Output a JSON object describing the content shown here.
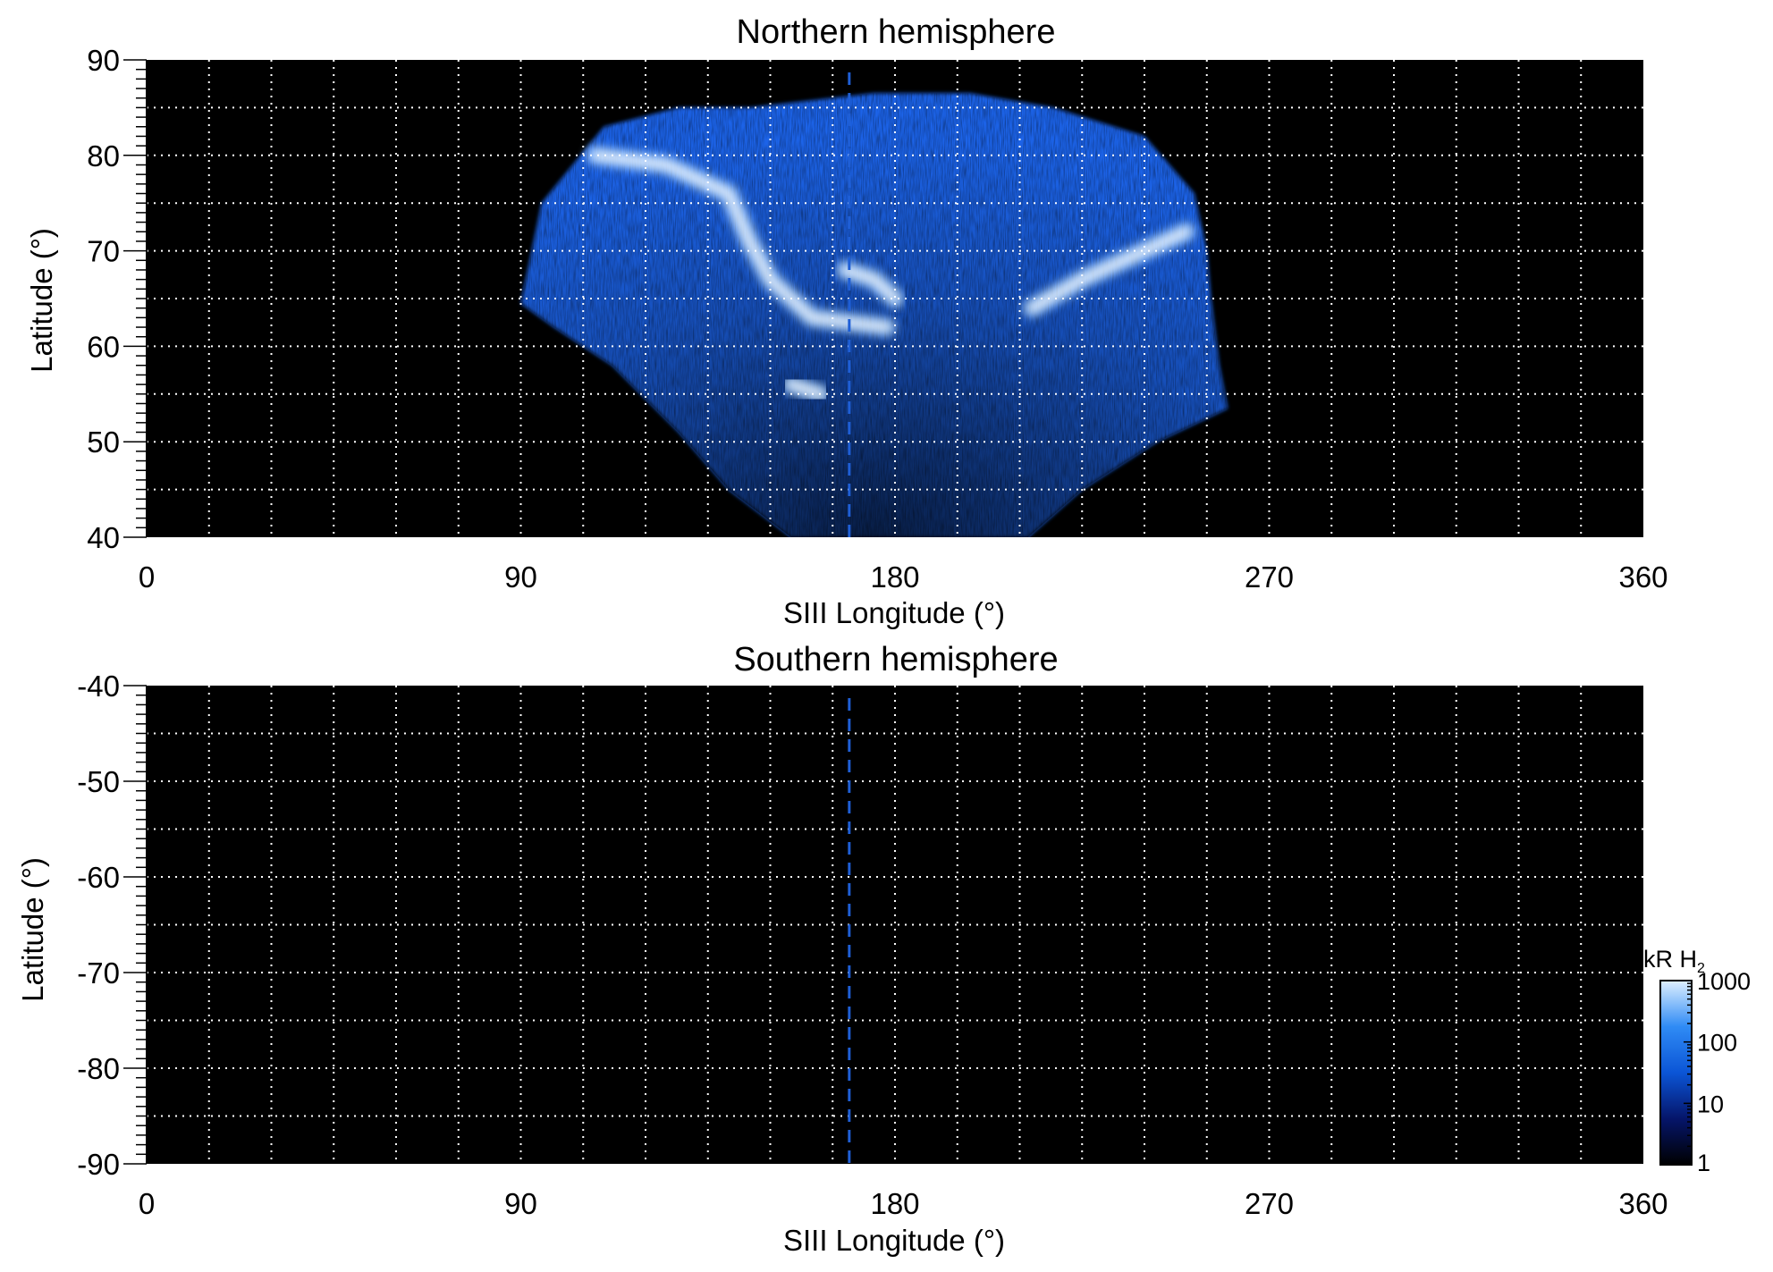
{
  "chart_data": [
    {
      "type": "heatmap",
      "title": "Northern hemisphere",
      "xlabel": "SIII Longitude (°)",
      "ylabel": "Latitude (°)",
      "xlim": [
        0,
        360
      ],
      "ylim": [
        40,
        90
      ],
      "xticks": [
        0,
        90,
        180,
        270,
        360
      ],
      "xtick_labels": [
        "0",
        "90",
        "180",
        "270",
        "360"
      ],
      "yticks": [
        40,
        50,
        60,
        70,
        80,
        90
      ],
      "ytick_labels": [
        "40",
        "50",
        "60",
        "70",
        "80",
        "90"
      ],
      "grid": true,
      "grid_x_step": 15,
      "grid_y_step": 5,
      "marker_longitude": 169,
      "emission_region": {
        "description_points": [
          {
            "lon": 90,
            "lat": 64.5
          },
          {
            "lon": 95,
            "lat": 75
          },
          {
            "lon": 110,
            "lat": 83
          },
          {
            "lon": 128,
            "lat": 85
          },
          {
            "lon": 145,
            "lat": 85
          },
          {
            "lon": 175,
            "lat": 86.5
          },
          {
            "lon": 198,
            "lat": 86.5
          },
          {
            "lon": 218,
            "lat": 85
          },
          {
            "lon": 240,
            "lat": 82
          },
          {
            "lon": 252,
            "lat": 76
          },
          {
            "lon": 255,
            "lat": 70
          },
          {
            "lon": 256,
            "lat": 65
          },
          {
            "lon": 258,
            "lat": 58
          },
          {
            "lon": 260,
            "lat": 53.5
          },
          {
            "lon": 243,
            "lat": 50
          },
          {
            "lon": 225,
            "lat": 45
          },
          {
            "lon": 212,
            "lat": 40
          },
          {
            "lon": 155,
            "lat": 40
          },
          {
            "lon": 140,
            "lat": 45
          },
          {
            "lon": 128,
            "lat": 51
          },
          {
            "lon": 112,
            "lat": 58
          },
          {
            "lon": 98,
            "lat": 62
          }
        ],
        "bright_arcs": [
          {
            "points": [
              [
                108,
                80
              ],
              [
                125,
                79
              ],
              [
                140,
                76
              ],
              [
                145,
                71
              ],
              [
                150,
                67
              ],
              [
                160,
                63
              ],
              [
                178,
                62
              ]
            ]
          },
          {
            "points": [
              [
                168,
                68
              ],
              [
                175,
                67
              ],
              [
                180,
                65
              ]
            ]
          },
          {
            "points": [
              [
                155,
                56
              ],
              [
                162,
                55
              ]
            ]
          },
          {
            "points": [
              [
                213,
                64
              ],
              [
                225,
                67
              ],
              [
                240,
                70
              ],
              [
                250,
                72
              ]
            ]
          }
        ]
      }
    },
    {
      "type": "heatmap",
      "title": "Southern hemisphere",
      "xlabel": "SIII Longitude (°)",
      "ylabel": "Latitude (°)",
      "xlim": [
        0,
        360
      ],
      "ylim": [
        -90,
        -40
      ],
      "xticks": [
        0,
        90,
        180,
        270,
        360
      ],
      "xtick_labels": [
        "0",
        "90",
        "180",
        "270",
        "360"
      ],
      "yticks": [
        -90,
        -80,
        -70,
        -60,
        -50,
        -40
      ],
      "ytick_labels": [
        "-90",
        "-80",
        "-70",
        "-60",
        "-50",
        "-40"
      ],
      "grid": true,
      "grid_x_step": 15,
      "grid_y_step": 5,
      "marker_longitude": 169
    }
  ],
  "colorbar": {
    "unit": "kR H",
    "unit_subscript": "2",
    "scale": "log",
    "range": [
      1,
      1000
    ],
    "ticks": [
      1,
      10,
      100,
      1000
    ],
    "tick_labels": [
      "1",
      "10",
      "100",
      "1000"
    ],
    "colors": [
      "#000000",
      "#05156a",
      "#0b55d6",
      "#2f8bf5",
      "#dff0ff"
    ]
  },
  "colors": {
    "plot_background": "#000000",
    "grid": "#ffffff",
    "marker_line": "#1f5fd6",
    "emission_base": "#1b64e8",
    "emission_bright": "#ffffff"
  }
}
